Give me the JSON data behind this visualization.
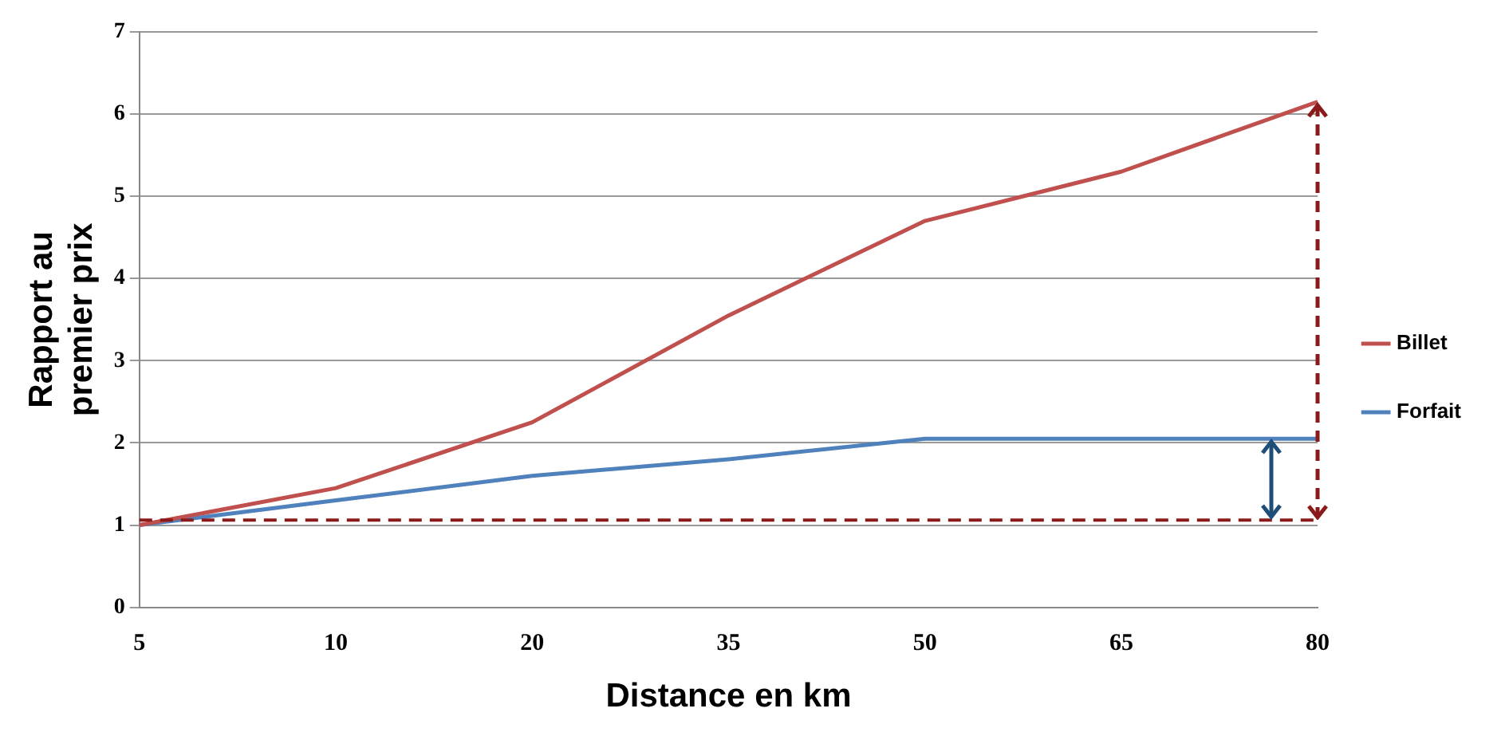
{
  "chart_data": {
    "type": "line",
    "xlabel": "Distance en km",
    "ylabel": "Rapport au\npremier prix",
    "categories": [
      "5",
      "10",
      "20",
      "35",
      "50",
      "65",
      "80"
    ],
    "series": [
      {
        "name": "Billet",
        "color": "#c0504d",
        "values": [
          1.0,
          1.45,
          2.25,
          3.55,
          4.7,
          5.3,
          6.15
        ]
      },
      {
        "name": "Forfait",
        "color": "#4f81bd",
        "values": [
          1.0,
          1.3,
          1.6,
          1.8,
          2.05,
          2.05,
          2.05
        ]
      }
    ],
    "ylim": [
      0,
      7
    ],
    "yticks": [
      0,
      1,
      2,
      3,
      4,
      5,
      6,
      7
    ],
    "grid": "y",
    "legend": "right",
    "marker": "none",
    "line_style": "solid",
    "ref_lines": [
      {
        "axis": "y",
        "value": 1.06,
        "label": null,
        "color": "#8b1a1a",
        "line_style": "dashed"
      }
    ]
  }
}
